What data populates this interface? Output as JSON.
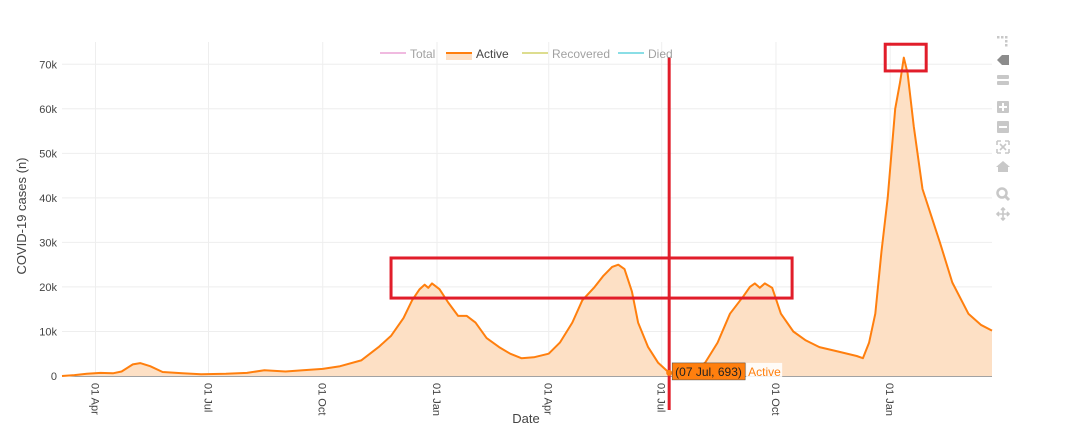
{
  "chart_data": {
    "type": "area",
    "title": "",
    "xlabel": "Date",
    "ylabel": "COVID-19 cases (n)",
    "x_range": [
      "2020-03-05",
      "2022-03-24"
    ],
    "ylim": [
      0,
      75000
    ],
    "grid": true,
    "legend_placement": "top-center",
    "y_ticks": [
      {
        "value": 0,
        "label": "0"
      },
      {
        "value": 10000,
        "label": "10k"
      },
      {
        "value": 20000,
        "label": "20k"
      },
      {
        "value": 30000,
        "label": "30k"
      },
      {
        "value": 40000,
        "label": "40k"
      },
      {
        "value": 50000,
        "label": "50k"
      },
      {
        "value": 60000,
        "label": "60k"
      },
      {
        "value": 70000,
        "label": "70k"
      }
    ],
    "x_ticks": [
      {
        "value": "2020-04-01",
        "label": "01 Apr"
      },
      {
        "value": "2020-07-01",
        "label": "01 Jul"
      },
      {
        "value": "2020-10-01",
        "label": "01 Oct"
      },
      {
        "value": "2021-01-01",
        "label": "01 Jan"
      },
      {
        "value": "2021-04-01",
        "label": "01 Apr"
      },
      {
        "value": "2021-07-01",
        "label": "01 Jul"
      },
      {
        "value": "2021-10-01",
        "label": "01 Oct"
      },
      {
        "value": "2022-01-01",
        "label": "01 Jan"
      }
    ],
    "legend": [
      {
        "name": "Total",
        "color": "#e377c2",
        "visible": false
      },
      {
        "name": "Active",
        "color": "#ff7f0e",
        "visible": true
      },
      {
        "name": "Recovered",
        "color": "#bcbd22",
        "visible": false
      },
      {
        "name": "Died",
        "color": "#17becf",
        "visible": false
      }
    ],
    "series": [
      {
        "name": "Active",
        "color": "#ff7f0e",
        "fill": "#fde0c5",
        "points": [
          [
            "2020-03-05",
            0
          ],
          [
            "2020-03-15",
            200
          ],
          [
            "2020-03-25",
            500
          ],
          [
            "2020-04-05",
            700
          ],
          [
            "2020-04-15",
            600
          ],
          [
            "2020-04-22",
            1000
          ],
          [
            "2020-05-01",
            2600
          ],
          [
            "2020-05-07",
            2900
          ],
          [
            "2020-05-15",
            2200
          ],
          [
            "2020-05-25",
            900
          ],
          [
            "2020-06-10",
            600
          ],
          [
            "2020-06-25",
            400
          ],
          [
            "2020-07-15",
            500
          ],
          [
            "2020-08-01",
            700
          ],
          [
            "2020-08-15",
            1300
          ],
          [
            "2020-09-01",
            1000
          ],
          [
            "2020-09-15",
            1300
          ],
          [
            "2020-10-01",
            1600
          ],
          [
            "2020-10-15",
            2200
          ],
          [
            "2020-11-01",
            3500
          ],
          [
            "2020-11-15",
            6500
          ],
          [
            "2020-11-25",
            9000
          ],
          [
            "2020-12-05",
            13000
          ],
          [
            "2020-12-12",
            17000
          ],
          [
            "2020-12-18",
            19500
          ],
          [
            "2020-12-22",
            20500
          ],
          [
            "2020-12-25",
            19800
          ],
          [
            "2020-12-28",
            20800
          ],
          [
            "2021-01-03",
            19500
          ],
          [
            "2021-01-10",
            16500
          ],
          [
            "2021-01-18",
            13500
          ],
          [
            "2021-01-25",
            13500
          ],
          [
            "2021-02-01",
            12000
          ],
          [
            "2021-02-10",
            8500
          ],
          [
            "2021-02-20",
            6500
          ],
          [
            "2021-03-01",
            5000
          ],
          [
            "2021-03-10",
            4000
          ],
          [
            "2021-03-20",
            4200
          ],
          [
            "2021-04-01",
            5000
          ],
          [
            "2021-04-10",
            7500
          ],
          [
            "2021-04-20",
            12000
          ],
          [
            "2021-04-28",
            17000
          ],
          [
            "2021-05-08",
            20000
          ],
          [
            "2021-05-15",
            22500
          ],
          [
            "2021-05-22",
            24500
          ],
          [
            "2021-05-27",
            25000
          ],
          [
            "2021-06-01",
            24000
          ],
          [
            "2021-06-07",
            19000
          ],
          [
            "2021-06-12",
            12000
          ],
          [
            "2021-06-20",
            6500
          ],
          [
            "2021-06-28",
            3000
          ],
          [
            "2021-07-07",
            693
          ],
          [
            "2021-07-15",
            400
          ],
          [
            "2021-07-25",
            800
          ],
          [
            "2021-08-05",
            3000
          ],
          [
            "2021-08-15",
            7500
          ],
          [
            "2021-08-25",
            14000
          ],
          [
            "2021-09-05",
            18000
          ],
          [
            "2021-09-10",
            20000
          ],
          [
            "2021-09-14",
            20800
          ],
          [
            "2021-09-18",
            19800
          ],
          [
            "2021-09-22",
            20800
          ],
          [
            "2021-09-28",
            19800
          ],
          [
            "2021-10-05",
            14000
          ],
          [
            "2021-10-15",
            10000
          ],
          [
            "2021-10-25",
            8000
          ],
          [
            "2021-11-05",
            6500
          ],
          [
            "2021-11-20",
            5500
          ],
          [
            "2021-12-05",
            4500
          ],
          [
            "2021-12-10",
            4000
          ],
          [
            "2021-12-15",
            7500
          ],
          [
            "2021-12-20",
            14000
          ],
          [
            "2021-12-25",
            28000
          ],
          [
            "2021-12-30",
            40000
          ],
          [
            "2022-01-05",
            60000
          ],
          [
            "2022-01-09",
            66000
          ],
          [
            "2022-01-12",
            71500
          ],
          [
            "2022-01-15",
            68000
          ],
          [
            "2022-01-20",
            56000
          ],
          [
            "2022-01-27",
            42000
          ],
          [
            "2022-02-03",
            36000
          ],
          [
            "2022-02-10",
            30000
          ],
          [
            "2022-02-20",
            21000
          ],
          [
            "2022-03-05",
            14000
          ],
          [
            "2022-03-15",
            11500
          ],
          [
            "2022-03-24",
            10200
          ]
        ]
      }
    ],
    "hover": {
      "date": "2021-07-07",
      "value": 693,
      "label": "(07 Jul, 693)",
      "series_name": "Active"
    },
    "annotations": [
      {
        "type": "rect",
        "x0": "2020-11-25",
        "x1": "2021-10-14",
        "y0": 17500,
        "y1": 26500,
        "color": "#e11d2a"
      },
      {
        "type": "rect",
        "x0": "2021-12-28",
        "x1": "2022-01-30",
        "y0": 68500,
        "y1": 74500,
        "color": "#e11d2a"
      },
      {
        "type": "vline",
        "x": "2021-07-07",
        "y0": 0,
        "y1": 71500,
        "color": "#e11d2a"
      }
    ]
  },
  "modebar": {
    "icons": [
      {
        "name": "plotly-logo-icon",
        "active": false
      },
      {
        "name": "compare-hover-icon",
        "active": true
      },
      {
        "name": "closest-hover-icon",
        "active": false
      },
      {
        "name": "zoom-in-icon",
        "active": false
      },
      {
        "name": "zoom-out-icon",
        "active": false
      },
      {
        "name": "autoscale-icon",
        "active": false
      },
      {
        "name": "reset-axes-icon",
        "active": false
      },
      {
        "name": "zoom-icon",
        "active": false
      },
      {
        "name": "pan-icon",
        "active": false
      }
    ]
  }
}
